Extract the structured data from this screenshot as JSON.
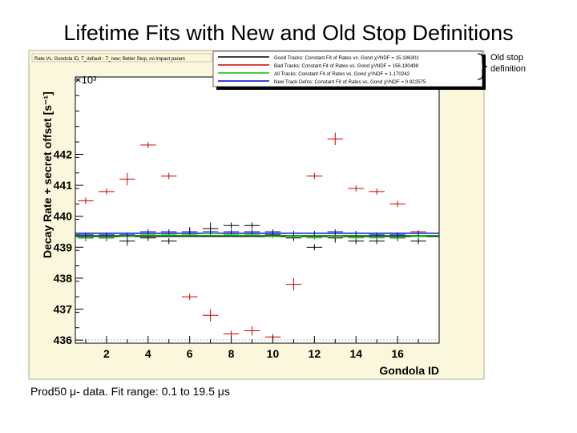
{
  "slide": {
    "title": "Lifetime Fits with New and Old Stop Definitions",
    "note_line1": "Old stop",
    "note_line2": "definition",
    "footer": "Prod50 μ- data.   Fit range: 0.1 to 19.5 μs"
  },
  "chart_data": {
    "type": "scatter",
    "title": "Rate Vs. Gondola ID, T_default - T_new; Better Stop, no impact param",
    "xlabel": "Gondola ID",
    "ylabel": "Decay Rate + secret offset [s⁻¹]",
    "ylabel_multiplier": "×10³",
    "xlim": [
      0.5,
      18
    ],
    "ylim": [
      435.9,
      444.5
    ],
    "xticks": [
      2,
      4,
      6,
      8,
      10,
      12,
      14,
      16
    ],
    "yticks": [
      436,
      437,
      438,
      439,
      440,
      441,
      442
    ],
    "legend_position": "top-right",
    "legend": [
      {
        "label": "Good Tracks: Constant Fit of Rates vs. Gond χ²/NDF = 15.186301",
        "color": "#000000"
      },
      {
        "label": "Bad Tracks: Constant Fit of Rates vs. Gond χ²/NDF = 156.190498",
        "color": "#cc0000"
      },
      {
        "label": "All Tracks: Constant Fit of Rates vs. Gond χ²/NDF = 1.170242",
        "color": "#00bb00"
      },
      {
        "label": "New Track Defns: Constant Fit of Rates vs. Gond χ²/NDF = 0.922575",
        "color": "#0000cc"
      }
    ],
    "series": [
      {
        "name": "Bad Tracks",
        "color": "#cc0000",
        "x": [
          1,
          2,
          3,
          4,
          5,
          6,
          7,
          8,
          9,
          10,
          11,
          12,
          13,
          14,
          15,
          16,
          17
        ],
        "y": [
          440.5,
          440.8,
          441.2,
          442.3,
          441.3,
          437.4,
          436.8,
          436.2,
          436.3,
          436.1,
          437.8,
          441.3,
          442.5,
          440.9,
          440.8,
          440.4,
          439.5
        ],
        "err": [
          0.1,
          0.1,
          0.2,
          0.1,
          0.1,
          0.1,
          0.2,
          0.1,
          0.15,
          0.1,
          0.2,
          0.1,
          0.2,
          0.1,
          0.1,
          0.1,
          0.05
        ]
      },
      {
        "name": "Good Tracks",
        "color": "#000000",
        "x": [
          1,
          2,
          3,
          4,
          5,
          6,
          7,
          8,
          9,
          10,
          11,
          12,
          13,
          14,
          15,
          16,
          17
        ],
        "y": [
          439.3,
          439.3,
          439.2,
          439.3,
          439.2,
          439.5,
          439.6,
          439.7,
          439.7,
          439.4,
          439.3,
          439.0,
          439.3,
          439.2,
          439.2,
          439.3,
          439.2
        ],
        "err": [
          0.1,
          0.1,
          0.15,
          0.1,
          0.1,
          0.15,
          0.2,
          0.1,
          0.1,
          0.1,
          0.1,
          0.1,
          0.15,
          0.1,
          0.1,
          0.1,
          0.1
        ]
      },
      {
        "name": "All Tracks",
        "color": "#00bb00",
        "x": [
          1,
          2,
          3,
          4,
          5,
          6,
          7,
          8,
          9,
          10,
          11,
          12,
          13,
          14,
          15,
          16,
          17
        ],
        "y": [
          439.3,
          439.3,
          439.35,
          439.4,
          439.4,
          439.4,
          439.45,
          439.4,
          439.4,
          439.35,
          439.35,
          439.3,
          439.35,
          439.3,
          439.3,
          439.3,
          439.35
        ],
        "err": [
          0.05,
          0.05,
          0.05,
          0.05,
          0.05,
          0.05,
          0.05,
          0.05,
          0.05,
          0.05,
          0.05,
          0.05,
          0.05,
          0.05,
          0.05,
          0.05,
          0.05
        ]
      },
      {
        "name": "New Track Defns",
        "color": "#0000cc",
        "x": [
          1,
          2,
          3,
          4,
          5,
          6,
          7,
          8,
          9,
          10,
          11,
          12,
          13,
          14,
          15,
          16,
          17
        ],
        "y": [
          439.4,
          439.4,
          439.4,
          439.5,
          439.5,
          439.5,
          439.5,
          439.5,
          439.5,
          439.5,
          439.45,
          439.45,
          439.5,
          439.45,
          439.4,
          439.4,
          439.45
        ],
        "err": [
          0.08,
          0.08,
          0.08,
          0.08,
          0.08,
          0.08,
          0.08,
          0.08,
          0.08,
          0.08,
          0.08,
          0.08,
          0.08,
          0.08,
          0.08,
          0.08,
          0.08
        ]
      }
    ],
    "fit_lines": [
      {
        "name": "Good Tracks fit",
        "color": "#000000",
        "y": 439.35
      },
      {
        "name": "All Tracks fit",
        "color": "#00bb00",
        "y": 439.38
      },
      {
        "name": "New Track Defns fit",
        "color": "#0000cc",
        "y": 439.45
      }
    ]
  }
}
